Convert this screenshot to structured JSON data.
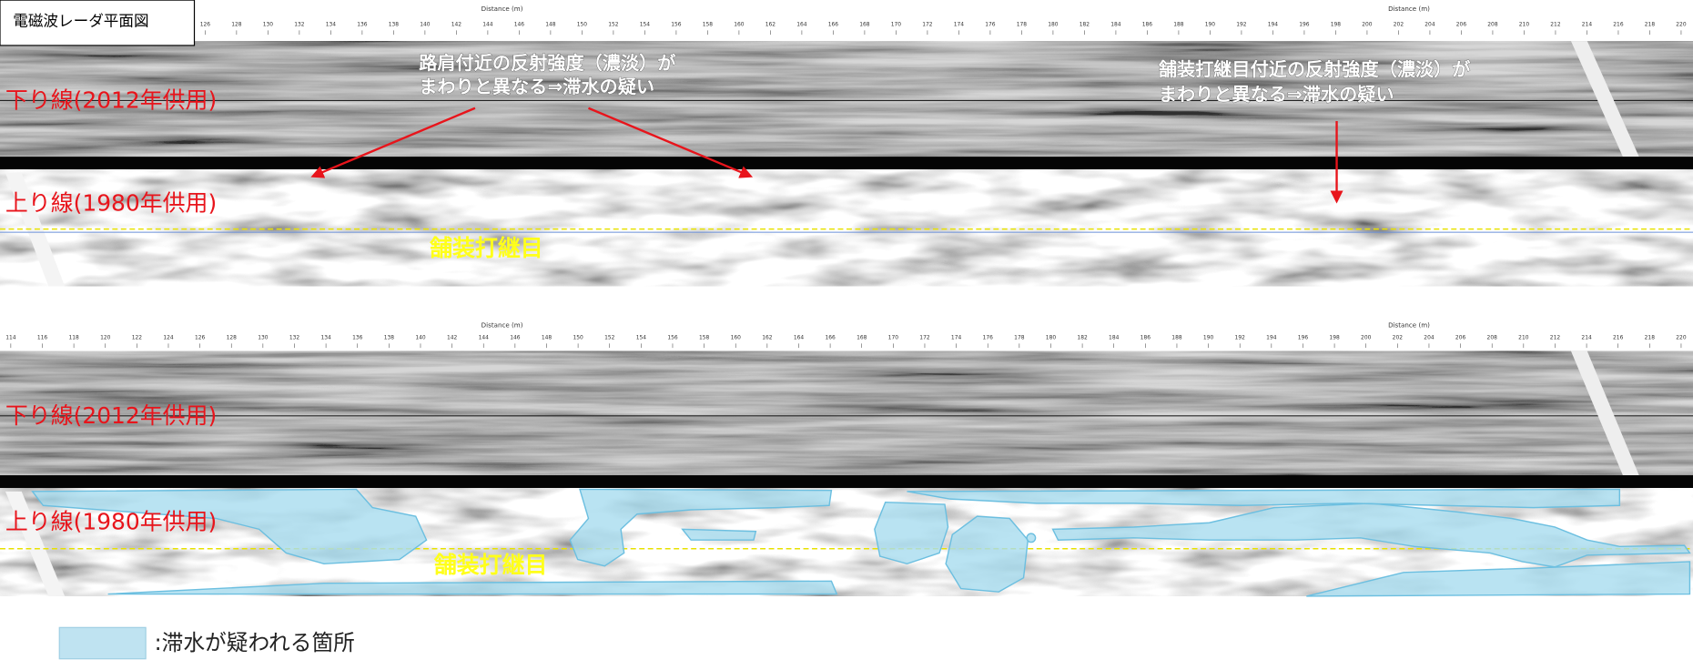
{
  "title": "電磁波レーダ平面図",
  "panels": [
    {
      "distance_labels": [
        "Distance (m)",
        "Distance (m)"
      ],
      "ticks": [
        126,
        128,
        130,
        132,
        134,
        136,
        138,
        140,
        142,
        144,
        146,
        148,
        150,
        152,
        154,
        156,
        158,
        160,
        162,
        164,
        166,
        168,
        170,
        172,
        174,
        176,
        178,
        180,
        182,
        184,
        186,
        188,
        190,
        192,
        194,
        196,
        198,
        200,
        202,
        204,
        206,
        208,
        210,
        212,
        214,
        216,
        218,
        220
      ],
      "down_label": "下り線(2012年供用)",
      "up_label": "上り線(1980年供用)",
      "joint_label": "舗装打継目",
      "annotations": [
        {
          "lines": [
            "路肩付近の反射強度（濃淡）が",
            "まわりと異なる⇒滞水の疑い"
          ]
        },
        {
          "lines": [
            "舗装打継目付近の反射強度（濃淡）が",
            "まわりと異なる⇒滞水の疑い"
          ]
        }
      ]
    },
    {
      "distance_labels": [
        "Distance (m)",
        "Distance (m)"
      ],
      "ticks": [
        114,
        116,
        118,
        120,
        122,
        124,
        126,
        128,
        130,
        132,
        134,
        136,
        138,
        140,
        142,
        144,
        146,
        148,
        150,
        152,
        154,
        156,
        158,
        160,
        162,
        164,
        166,
        168,
        170,
        172,
        174,
        176,
        178,
        180,
        182,
        184,
        186,
        188,
        190,
        192,
        194,
        196,
        198,
        200,
        202,
        204,
        206,
        208,
        210,
        212,
        214,
        216,
        218,
        220
      ],
      "down_label": "下り線(2012年供用)",
      "up_label": "上り線(1980年供用)",
      "joint_label": "舗装打継目"
    }
  ],
  "legend": ":滞水が疑われる箇所"
}
